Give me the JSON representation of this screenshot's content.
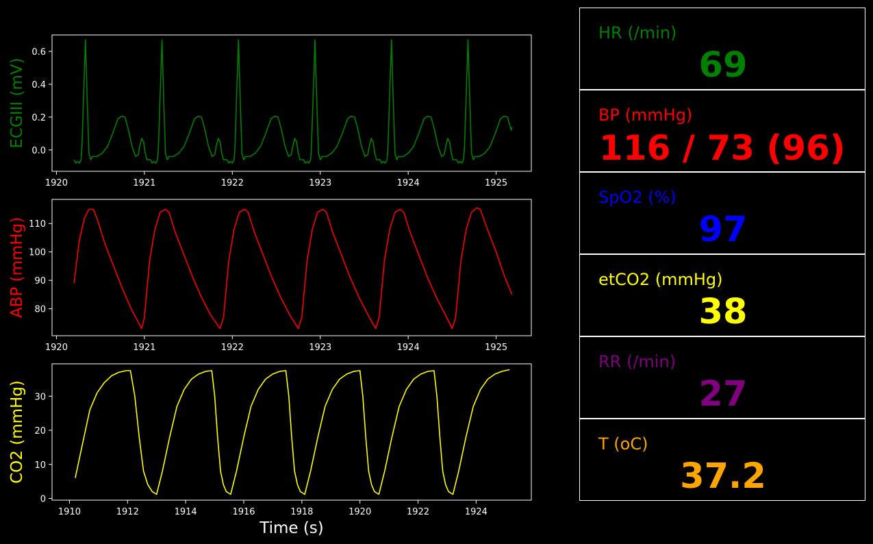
{
  "colors": {
    "background": "#000000",
    "axes": "#ffffff",
    "ecg": "#008000",
    "abp": "#ff0000",
    "co2": "#ffff00",
    "hr": "#008000",
    "bp": "#ff0000",
    "spo2": "#0000ff",
    "etco2": "#ffff00",
    "rr": "#800080",
    "temp": "#ffa500"
  },
  "monitor": {
    "hr": {
      "label": "HR (/min)",
      "value": "69"
    },
    "bp": {
      "label": "BP  (mmHg)",
      "value": "116 / 73 (96)"
    },
    "spo2": {
      "label": "SpO2 (%)",
      "value": "97"
    },
    "etco2": {
      "label": "etCO2 (mmHg)",
      "value": "38"
    },
    "rr": {
      "label": "RR (/min)",
      "value": "27"
    },
    "temp": {
      "label": "T (oC)",
      "value": "37.2"
    }
  },
  "chart_data": [
    {
      "type": "line",
      "ylabel": "ECGIII (mV)",
      "xlabel": "",
      "xlim": [
        1919.95,
        1925.4
      ],
      "ylim": [
        -0.13,
        0.7
      ],
      "xticks": [
        1920,
        1921,
        1922,
        1923,
        1924,
        1925
      ],
      "yticks": [
        0.0,
        0.2,
        0.4,
        0.6
      ],
      "ytick_labels": [
        "0.0",
        "0.2",
        "0.4",
        "0.6"
      ],
      "color": "#008000",
      "series": [
        {
          "period": 0.87,
          "start": 1920.2,
          "end": 1925.18,
          "beat": [
            [
              0,
              -0.06
            ],
            [
              0.02,
              -0.08
            ],
            [
              0.04,
              -0.07
            ],
            [
              0.06,
              -0.08
            ],
            [
              0.08,
              -0.06
            ],
            [
              0.09,
              0.02
            ],
            [
              0.11,
              0.35
            ],
            [
              0.13,
              0.67
            ],
            [
              0.15,
              0.3
            ],
            [
              0.17,
              -0.02
            ],
            [
              0.19,
              -0.06
            ],
            [
              0.21,
              -0.04
            ],
            [
              0.26,
              -0.04
            ],
            [
              0.32,
              -0.02
            ],
            [
              0.38,
              0.02
            ],
            [
              0.44,
              0.1
            ],
            [
              0.5,
              0.19
            ],
            [
              0.54,
              0.205
            ],
            [
              0.58,
              0.2
            ],
            [
              0.62,
              0.12
            ],
            [
              0.66,
              0.02
            ],
            [
              0.7,
              -0.04
            ],
            [
              0.73,
              -0.03
            ],
            [
              0.75,
              0.03
            ],
            [
              0.77,
              0.07
            ],
            [
              0.79,
              0.05
            ],
            [
              0.81,
              -0.02
            ],
            [
              0.83,
              -0.06
            ]
          ]
        }
      ]
    },
    {
      "type": "line",
      "ylabel": "ABP (mmHg)",
      "xlabel": "",
      "xlim": [
        1919.95,
        1925.4
      ],
      "ylim": [
        70.5,
        118.5
      ],
      "xticks": [
        1920,
        1921,
        1922,
        1923,
        1924,
        1925
      ],
      "yticks": [
        80,
        90,
        100,
        110
      ],
      "ytick_labels": [
        "80",
        "90",
        "100",
        "110"
      ],
      "color": "#ff0000",
      "series": [
        {
          "points": [
            [
              1920.2,
              89
            ],
            [
              1920.26,
              104
            ],
            [
              1920.32,
              112
            ],
            [
              1920.37,
              115
            ],
            [
              1920.42,
              115
            ],
            [
              1920.47,
              111
            ],
            [
              1920.55,
              103
            ],
            [
              1920.65,
              95
            ],
            [
              1920.75,
              87
            ],
            [
              1920.85,
              80
            ],
            [
              1920.97,
              73
            ],
            [
              1921.0,
              77
            ],
            [
              1921.06,
              97
            ],
            [
              1921.12,
              108
            ],
            [
              1921.18,
              114
            ],
            [
              1921.24,
              115
            ],
            [
              1921.28,
              114
            ],
            [
              1921.35,
              107
            ],
            [
              1921.45,
              99
            ],
            [
              1921.55,
              91
            ],
            [
              1921.65,
              84
            ],
            [
              1921.75,
              78
            ],
            [
              1921.86,
              73
            ],
            [
              1921.9,
              77
            ],
            [
              1921.96,
              97
            ],
            [
              1922.02,
              108
            ],
            [
              1922.08,
              114
            ],
            [
              1922.14,
              115
            ],
            [
              1922.18,
              114
            ],
            [
              1922.25,
              107
            ],
            [
              1922.35,
              99
            ],
            [
              1922.45,
              91
            ],
            [
              1922.55,
              84
            ],
            [
              1922.65,
              78
            ],
            [
              1922.75,
              73
            ],
            [
              1922.79,
              77
            ],
            [
              1922.85,
              97
            ],
            [
              1922.91,
              108
            ],
            [
              1922.97,
              114
            ],
            [
              1923.03,
              115
            ],
            [
              1923.07,
              114
            ],
            [
              1923.14,
              107
            ],
            [
              1923.24,
              99
            ],
            [
              1923.34,
              91
            ],
            [
              1923.44,
              84
            ],
            [
              1923.54,
              78
            ],
            [
              1923.63,
              73
            ],
            [
              1923.67,
              77
            ],
            [
              1923.73,
              97
            ],
            [
              1923.79,
              108
            ],
            [
              1923.85,
              114
            ],
            [
              1923.91,
              115
            ],
            [
              1923.95,
              114
            ],
            [
              1924.02,
              107
            ],
            [
              1924.12,
              99
            ],
            [
              1924.22,
              91
            ],
            [
              1924.32,
              84
            ],
            [
              1924.42,
              78
            ],
            [
              1924.5,
              73
            ],
            [
              1924.54,
              77
            ],
            [
              1924.6,
              97
            ],
            [
              1924.66,
              108
            ],
            [
              1924.72,
              114
            ],
            [
              1924.78,
              115.5
            ],
            [
              1924.82,
              115
            ],
            [
              1924.9,
              108
            ],
            [
              1925.0,
              100
            ],
            [
              1925.1,
              91
            ],
            [
              1925.18,
              85
            ]
          ]
        }
      ]
    },
    {
      "type": "line",
      "ylabel": "CO2 (mmHg)",
      "xlabel": "Time (s)",
      "xlim": [
        1909.4,
        1925.9
      ],
      "ylim": [
        -0.5,
        39.5
      ],
      "xticks": [
        1910,
        1912,
        1914,
        1916,
        1918,
        1920,
        1922,
        1924
      ],
      "yticks": [
        0,
        10,
        20,
        30
      ],
      "ytick_labels": [
        "0",
        "10",
        "20",
        "30"
      ],
      "color": "#ffff00",
      "series": [
        {
          "points": [
            [
              1910.2,
              6
            ],
            [
              1910.45,
              16
            ],
            [
              1910.7,
              26
            ],
            [
              1910.95,
              31
            ],
            [
              1911.2,
              34
            ],
            [
              1911.45,
              36
            ],
            [
              1911.7,
              37
            ],
            [
              1911.95,
              37.5
            ],
            [
              1912.1,
              37.5
            ],
            [
              1912.25,
              30
            ],
            [
              1912.4,
              18
            ],
            [
              1912.55,
              8
            ],
            [
              1912.7,
              4
            ],
            [
              1912.85,
              2
            ],
            [
              1913.0,
              1.2
            ],
            [
              1913.2,
              8
            ],
            [
              1913.45,
              18
            ],
            [
              1913.7,
              27
            ],
            [
              1913.95,
              32
            ],
            [
              1914.2,
              35
            ],
            [
              1914.45,
              36.5
            ],
            [
              1914.7,
              37.3
            ],
            [
              1914.9,
              37.5
            ],
            [
              1915.0,
              30
            ],
            [
              1915.1,
              18
            ],
            [
              1915.2,
              8
            ],
            [
              1915.3,
              4
            ],
            [
              1915.4,
              2
            ],
            [
              1915.55,
              1.2
            ],
            [
              1915.75,
              8
            ],
            [
              1916.0,
              18
            ],
            [
              1916.25,
              27
            ],
            [
              1916.5,
              32
            ],
            [
              1916.75,
              35
            ],
            [
              1917.0,
              36.5
            ],
            [
              1917.25,
              37.3
            ],
            [
              1917.45,
              37.5
            ],
            [
              1917.55,
              30
            ],
            [
              1917.65,
              18
            ],
            [
              1917.75,
              8
            ],
            [
              1917.85,
              4
            ],
            [
              1917.95,
              2
            ],
            [
              1918.1,
              1.2
            ],
            [
              1918.3,
              8
            ],
            [
              1918.55,
              18
            ],
            [
              1918.8,
              27
            ],
            [
              1919.05,
              32
            ],
            [
              1919.3,
              35
            ],
            [
              1919.55,
              36.5
            ],
            [
              1919.8,
              37.3
            ],
            [
              1920.0,
              37.5
            ],
            [
              1920.1,
              30
            ],
            [
              1920.2,
              18
            ],
            [
              1920.3,
              8
            ],
            [
              1920.4,
              4
            ],
            [
              1920.5,
              2
            ],
            [
              1920.65,
              1.2
            ],
            [
              1920.85,
              8
            ],
            [
              1921.1,
              18
            ],
            [
              1921.35,
              27
            ],
            [
              1921.6,
              32
            ],
            [
              1921.85,
              35
            ],
            [
              1922.1,
              36.5
            ],
            [
              1922.35,
              37.3
            ],
            [
              1922.55,
              37.5
            ],
            [
              1922.65,
              30
            ],
            [
              1922.75,
              18
            ],
            [
              1922.85,
              8
            ],
            [
              1922.95,
              4
            ],
            [
              1923.05,
              2
            ],
            [
              1923.2,
              1.2
            ],
            [
              1923.4,
              8
            ],
            [
              1923.65,
              18
            ],
            [
              1923.9,
              27
            ],
            [
              1924.15,
              32
            ],
            [
              1924.4,
              35
            ],
            [
              1924.65,
              36.5
            ],
            [
              1924.9,
              37.3
            ],
            [
              1925.15,
              37.8
            ]
          ]
        }
      ]
    }
  ]
}
